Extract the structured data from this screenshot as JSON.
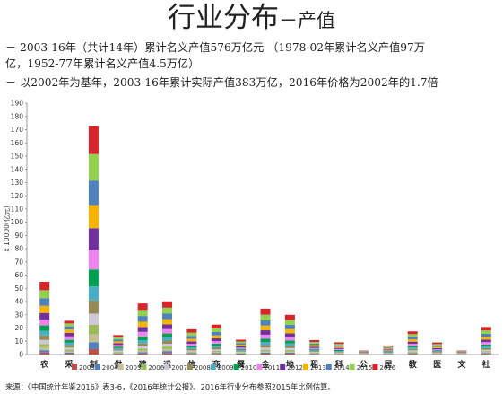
{
  "header": {
    "title_main": "行业分布",
    "title_sub": "－产值"
  },
  "bullets": [
    "－ 2003-16年（共计14年）累计名义产值576万亿元 （1978-02年累计名义产值97万",
    "亿，1952-77年累计名义产值4.5万亿）",
    "－ 以2002年为基年，2003-16年累计实际产值383万亿，2016年价格为2002年的1.7倍"
  ],
  "source": "来源：《中国统计年鉴2016》表3-6，《2016年统计公报》。2016年行业分布参照2015年比例估算。",
  "colors": {
    "2003": "#c0504d",
    "2004": "#4f81bd",
    "2005": "#c4bd97",
    "2006": "#9bbb59",
    "2007": "#d0c7d8",
    "2008": "#948a54",
    "2009": "#4bacc6",
    "2010": "#00a050",
    "2011": "#ee82ee",
    "2012": "#7030a0",
    "2013": "#f6b400",
    "2014": "#4f81bd",
    "2015": "#92d050",
    "2016": "#d7262b"
  },
  "chart_data": {
    "type": "bar",
    "stacked": true,
    "ylabel": "x 10000(亿元)",
    "ylim": [
      0,
      190
    ],
    "yticks": [
      0,
      10,
      20,
      30,
      40,
      50,
      60,
      70,
      80,
      90,
      100,
      110,
      120,
      130,
      140,
      150,
      160,
      170,
      180,
      190
    ],
    "grid": false,
    "legend_position": "bottom",
    "categories": [
      "农",
      "采",
      "制",
      "供",
      "建",
      "运",
      "信",
      "商",
      "餐",
      "金",
      "地",
      "租",
      "科",
      "公",
      "居",
      "教",
      "医",
      "文",
      "社"
    ],
    "series": [
      {
        "name": "2003",
        "values": [
          1.5,
          0.6,
          4.1,
          0.4,
          0.8,
          1.2,
          0.5,
          0.5,
          0.3,
          0.7,
          0.7,
          0.3,
          0.2,
          0.1,
          0.2,
          0.5,
          0.2,
          0.1,
          0.5
        ]
      },
      {
        "name": "2004",
        "values": [
          1.8,
          0.8,
          5.2,
          0.5,
          1.0,
          1.4,
          0.5,
          0.6,
          0.4,
          0.8,
          0.8,
          0.3,
          0.3,
          0.1,
          0.2,
          0.5,
          0.2,
          0.1,
          0.6
        ]
      },
      {
        "name": "2005",
        "values": [
          2.2,
          1.0,
          6.0,
          0.6,
          1.2,
          1.6,
          0.6,
          0.7,
          0.4,
          0.9,
          0.9,
          0.4,
          0.3,
          0.1,
          0.3,
          0.6,
          0.3,
          0.1,
          0.7
        ]
      },
      {
        "name": "2006",
        "values": [
          2.5,
          1.3,
          7.1,
          0.7,
          1.5,
          1.8,
          0.7,
          0.9,
          0.5,
          1.2,
          1.1,
          0.4,
          0.4,
          0.1,
          0.3,
          0.7,
          0.3,
          0.1,
          0.8
        ]
      },
      {
        "name": "2007",
        "values": [
          3.0,
          1.5,
          8.5,
          0.8,
          1.7,
          2.1,
          0.8,
          1.1,
          0.6,
          1.6,
          1.4,
          0.5,
          0.4,
          0.2,
          0.3,
          0.9,
          0.4,
          0.2,
          1.0
        ]
      },
      {
        "name": "2008",
        "values": [
          3.4,
          1.9,
          9.9,
          0.9,
          2.1,
          2.4,
          1.0,
          1.3,
          0.6,
          1.9,
          1.5,
          0.6,
          0.5,
          0.2,
          0.4,
          1.0,
          0.5,
          0.2,
          1.2
        ]
      },
      {
        "name": "2009",
        "values": [
          3.6,
          1.8,
          10.7,
          1.0,
          2.5,
          2.5,
          1.1,
          1.4,
          0.7,
          2.3,
          1.9,
          0.7,
          0.6,
          0.2,
          0.4,
          1.1,
          0.6,
          0.2,
          1.3
        ]
      },
      {
        "name": "2010",
        "values": [
          4.0,
          2.2,
          12.8,
          1.1,
          2.9,
          2.9,
          1.3,
          1.7,
          0.8,
          2.6,
          2.2,
          0.8,
          0.7,
          0.2,
          0.5,
          1.3,
          0.6,
          0.2,
          1.5
        ]
      },
      {
        "name": "2011",
        "values": [
          4.5,
          2.6,
          15.0,
          1.2,
          3.4,
          3.3,
          1.6,
          1.9,
          0.9,
          3.0,
          2.6,
          0.9,
          0.8,
          0.2,
          0.6,
          1.5,
          0.8,
          0.2,
          1.8
        ]
      },
      {
        "name": "2012",
        "values": [
          4.9,
          2.7,
          16.2,
          1.3,
          3.7,
          3.6,
          1.8,
          2.1,
          1.0,
          3.3,
          2.9,
          1.0,
          0.8,
          0.3,
          0.6,
          1.6,
          0.9,
          0.3,
          1.9
        ]
      },
      {
        "name": "2013",
        "values": [
          5.4,
          2.5,
          17.5,
          1.4,
          4.0,
          3.9,
          2.0,
          2.3,
          1.1,
          3.6,
          3.2,
          1.1,
          0.9,
          0.3,
          0.7,
          1.8,
          1.0,
          0.3,
          2.1
        ]
      },
      {
        "name": "2014",
        "values": [
          5.7,
          2.4,
          18.5,
          1.5,
          4.3,
          4.2,
          2.2,
          2.5,
          1.2,
          3.9,
          3.3,
          1.2,
          1.0,
          0.3,
          0.7,
          1.9,
          1.0,
          0.3,
          2.3
        ]
      },
      {
        "name": "2015",
        "values": [
          6.1,
          2.2,
          20.0,
          1.6,
          4.6,
          4.5,
          2.4,
          2.7,
          1.3,
          4.3,
          3.6,
          1.3,
          1.1,
          0.3,
          0.8,
          2.0,
          1.1,
          0.3,
          2.5
        ]
      },
      {
        "name": "2016",
        "values": [
          6.4,
          2.0,
          21.5,
          1.7,
          4.9,
          4.8,
          2.6,
          2.9,
          1.4,
          4.6,
          3.9,
          1.4,
          1.2,
          0.4,
          0.8,
          2.1,
          1.2,
          0.4,
          2.6
        ]
      }
    ]
  }
}
